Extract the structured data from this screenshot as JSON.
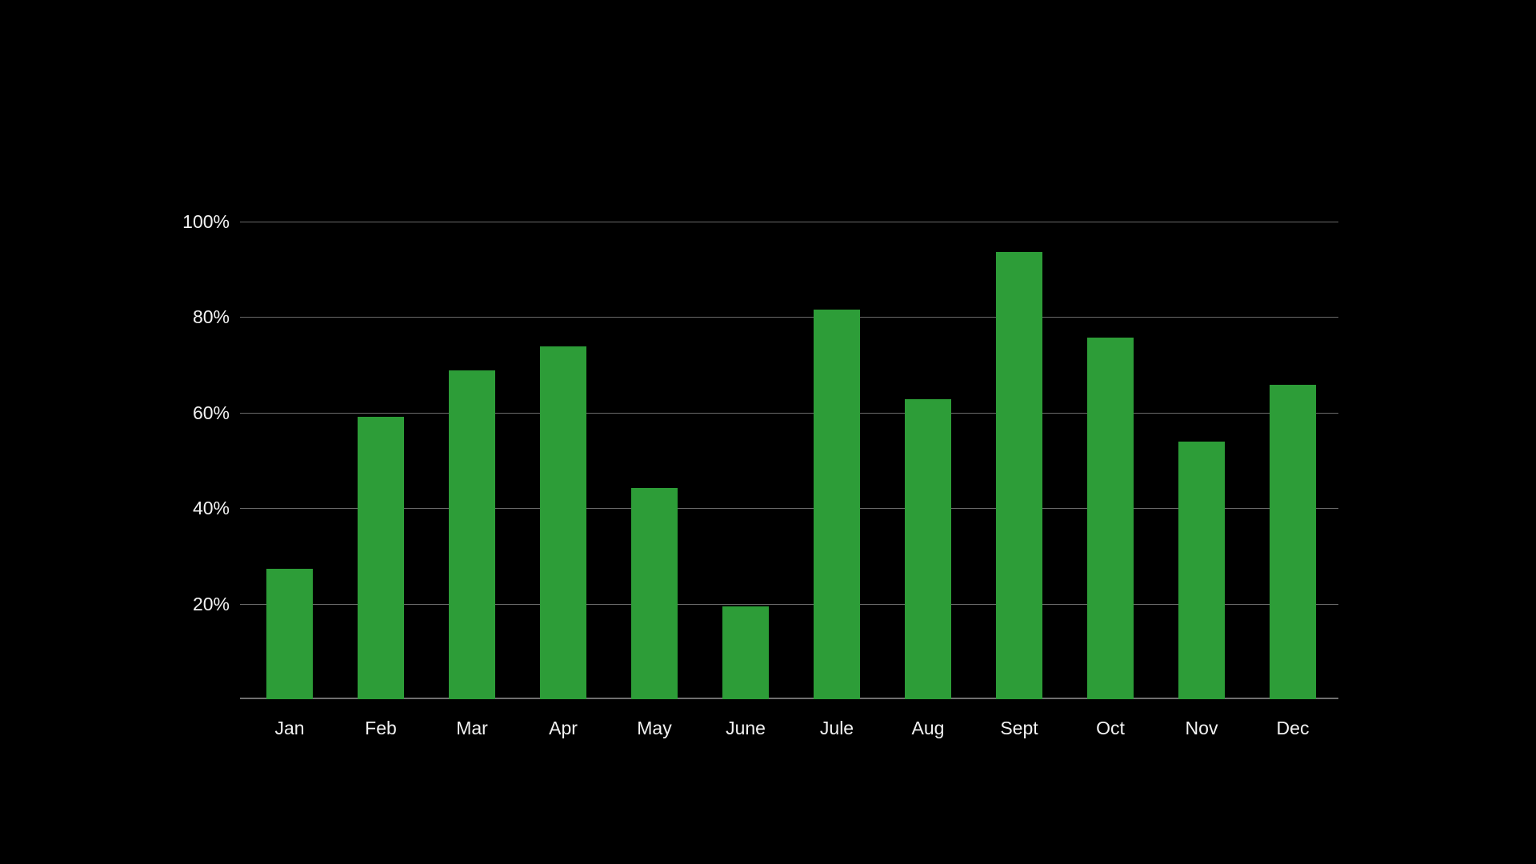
{
  "chart_data": {
    "type": "bar",
    "title": "",
    "categories": [
      "Jan",
      "Feb",
      "Mar",
      "Apr",
      "May",
      "June",
      "Jule",
      "Aug",
      "Sept",
      "Oct",
      "Nov",
      "Dec"
    ],
    "values": [
      27.3,
      59.1,
      68.9,
      73.9,
      44.2,
      19.4,
      81.6,
      62.8,
      93.6,
      75.7,
      53.9,
      65.8
    ],
    "xlabel": "",
    "ylabel": "",
    "ylim": [
      0,
      100
    ],
    "y_tick_labels": [
      "20%",
      "40%",
      "60%",
      "80%",
      "100%"
    ],
    "y_tick_values": [
      20,
      40,
      60,
      80,
      100
    ],
    "grid": true,
    "legend": false,
    "colors": {
      "background": "#000000",
      "bar": "#2d9d38",
      "gridline": "#6a6a6a",
      "axis_line": "#6f6f6f",
      "label_text": "#f2f2f2"
    }
  }
}
